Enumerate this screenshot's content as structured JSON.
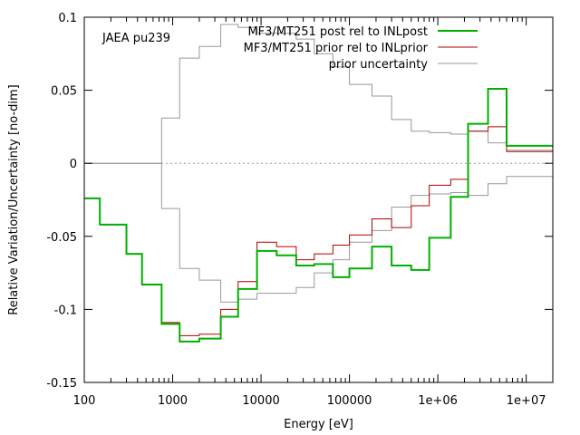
{
  "chart_data": {
    "type": "line",
    "title": "",
    "xlabel": "Energy [eV]",
    "ylabel": "Relative Variation/Uncertainty [no-dim]",
    "xscale": "log",
    "xlim": [
      100,
      20000000
    ],
    "ylim": [
      -0.15,
      0.1
    ],
    "grid": false,
    "zero_line": true,
    "legend_placement": "top-right",
    "annotation": "JAEA pu239",
    "xticks": [
      100,
      1000,
      10000,
      100000,
      1000000,
      10000000
    ],
    "xtick_labels": [
      "100",
      "1000",
      "10000",
      "100000",
      "1e+06",
      "1e+07"
    ],
    "yticks": [
      0.1,
      0.05,
      0,
      -0.05,
      -0.1,
      -0.15
    ],
    "ytick_labels": [
      "0.1",
      "0.05",
      "0",
      "-0.05",
      "-0.1",
      "-0.15"
    ],
    "bin_edges": [
      100,
      150,
      300,
      450,
      750,
      1200,
      2000,
      3500,
      5500,
      9000,
      15000,
      25000,
      40000,
      65000,
      100000,
      180000,
      300000,
      500000,
      800000,
      1400000,
      2200000,
      3700000,
      6000000,
      20000000
    ],
    "series": [
      {
        "name": "MF3/MT251 post rel to INLpost",
        "color": "#00b000",
        "style": "step",
        "values": [
          -0.024,
          -0.042,
          -0.062,
          -0.083,
          -0.11,
          -0.122,
          -0.12,
          -0.105,
          -0.086,
          -0.06,
          -0.063,
          -0.07,
          -0.069,
          -0.078,
          -0.072,
          -0.057,
          -0.07,
          -0.073,
          -0.051,
          -0.023,
          0.027,
          0.051,
          0.012,
          0.011
        ]
      },
      {
        "name": "MF3/MT251 prior rel to INLprior",
        "color": "#b00000",
        "style": "step",
        "values": [
          -0.024,
          -0.042,
          -0.062,
          -0.083,
          -0.109,
          -0.118,
          -0.117,
          -0.1,
          -0.081,
          -0.054,
          -0.057,
          -0.066,
          -0.062,
          -0.056,
          -0.049,
          -0.038,
          -0.044,
          -0.029,
          -0.015,
          -0.011,
          0.022,
          0.025,
          0.008,
          0.013
        ]
      },
      {
        "name": "prior uncertainty",
        "color": "#999999",
        "style": "step",
        "symmetric": true,
        "values": [
          0,
          0,
          0,
          0,
          0.031,
          0.072,
          0.08,
          0.095,
          0.093,
          0.089,
          0.089,
          0.085,
          0.075,
          0.066,
          0.054,
          0.046,
          0.03,
          0.022,
          0.021,
          0.02,
          0.022,
          0.014,
          0.009,
          0.01
        ]
      }
    ]
  }
}
